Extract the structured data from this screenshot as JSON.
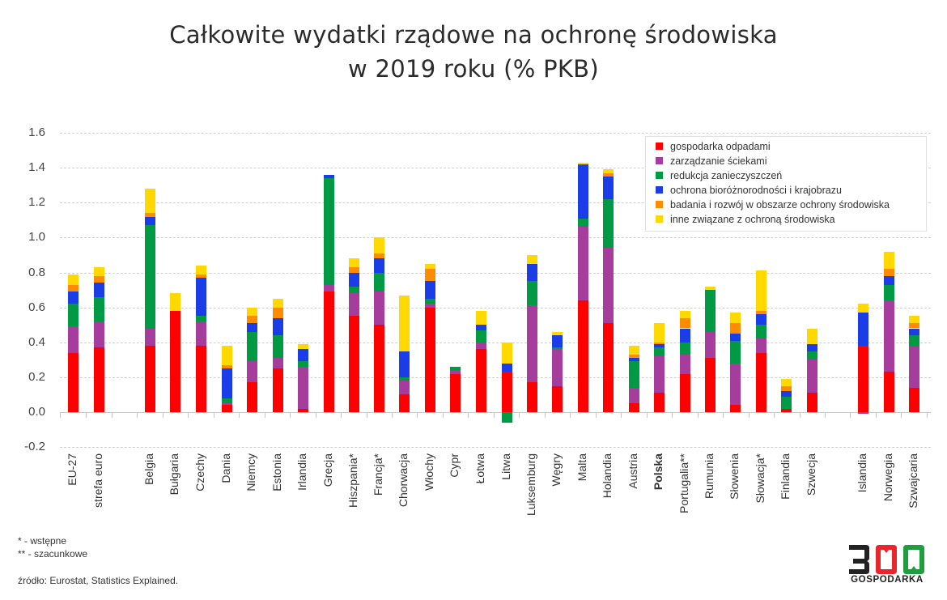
{
  "header": {
    "title_line1": "Całkowite wydatki rządowe na ochronę środowiska",
    "title_line2": "w 2019 roku (% PKB)"
  },
  "colors": {
    "gospodarka_odpadami": "#ff0000",
    "zarzadzanie_sciekami": "#a63c9b",
    "redukcja_zanieczyszczen": "#009a44",
    "ochrona_bioroznorodnosci": "#1a3de8",
    "badania_i_rozwoj": "#ff8c00",
    "inne": "#ffd800"
  },
  "legend": {
    "items": [
      {
        "label": "gospodarka odpadami",
        "color": "#ff0000"
      },
      {
        "label": "zarządzanie ściekami",
        "color": "#a63c9b"
      },
      {
        "label": "redukcja zanieczyszczeń",
        "color": "#009a44"
      },
      {
        "label": "ochrona bioróżnorodności i krajobrazu",
        "color": "#1a3de8"
      },
      {
        "label": "badania i rozwój w obszarze ochrony środowiska",
        "color": "#ff8c00"
      },
      {
        "label": "inne związane z ochroną środowiska",
        "color": "#ffd800"
      }
    ]
  },
  "y_axis": {
    "ticks": [
      "1.6",
      "1.4",
      "1.2",
      "1.0",
      "0.8",
      "0.6",
      "0.4",
      "0.2",
      "0.0",
      "-0.2"
    ]
  },
  "footer": {
    "note1": "* - wstępne",
    "note2": "** - szacunkowe",
    "source": "źródło: Eurostat, Statistics Explained.",
    "logo_number": "300",
    "logo_text": "GOSPODARKA"
  },
  "chart_data": {
    "type": "bar",
    "stacked": true,
    "title": "Całkowite wydatki rządowe na ochronę środowiska w 2019 roku (% PKB)",
    "xlabel": "",
    "ylabel": "% PKB",
    "ylim": [
      -0.2,
      1.6
    ],
    "grid": true,
    "legend_position": "top-right",
    "categories": [
      "EU-27",
      "strefa euro",
      "Belgia",
      "Bułgaria",
      "Czechy",
      "Dania",
      "Niemcy",
      "Estonia",
      "Irlandia",
      "Grecja",
      "Hiszpania*",
      "Francja*",
      "Chorwacja",
      "Włochy",
      "Cypr",
      "Łotwa",
      "Litwa",
      "Luksemburg",
      "Węgry",
      "Malta",
      "Holandia",
      "Austria",
      "Polska",
      "Portugalia**",
      "Rumunia",
      "Słowenia",
      "Słowacja*",
      "Finlandia",
      "Szwecja",
      "Islandia",
      "Norwegia",
      "Szwajcaria"
    ],
    "series": [
      {
        "name": "gospodarka odpadami",
        "values": [
          0.34,
          0.37,
          0.38,
          0.58,
          0.38,
          0.04,
          0.17,
          0.25,
          0.02,
          0.69,
          0.55,
          0.5,
          0.1,
          0.6,
          0.22,
          0.36,
          0.23,
          0.17,
          0.15,
          0.64,
          0.51,
          0.05,
          0.11,
          0.22,
          0.31,
          0.04,
          0.34,
          0.02,
          0.11,
          0.38,
          0.23,
          0.14
        ]
      },
      {
        "name": "zarządzanie ściekami",
        "values": [
          0.15,
          0.15,
          0.1,
          0.0,
          0.14,
          0.01,
          0.12,
          0.06,
          0.24,
          0.04,
          0.13,
          0.19,
          0.08,
          0.02,
          0.02,
          0.04,
          0.0,
          0.44,
          0.21,
          0.42,
          0.43,
          0.09,
          0.21,
          0.11,
          0.15,
          0.24,
          0.08,
          0.0,
          0.19,
          -0.01,
          0.41,
          0.24
        ]
      },
      {
        "name": "redukcja zanieczyszczeń",
        "values": [
          0.13,
          0.14,
          0.59,
          0.0,
          0.03,
          0.03,
          0.17,
          0.13,
          0.03,
          0.61,
          0.04,
          0.11,
          0.02,
          0.03,
          0.02,
          0.07,
          -0.06,
          0.14,
          0.01,
          0.05,
          0.28,
          0.15,
          0.05,
          0.07,
          0.24,
          0.13,
          0.08,
          0.07,
          0.05,
          0.0,
          0.09,
          0.06
        ]
      },
      {
        "name": "ochrona bioróżnorodności i krajobrazu",
        "values": [
          0.07,
          0.08,
          0.05,
          0.0,
          0.22,
          0.17,
          0.05,
          0.1,
          0.07,
          0.02,
          0.08,
          0.08,
          0.15,
          0.1,
          0.0,
          0.03,
          0.05,
          0.1,
          0.07,
          0.31,
          0.13,
          0.02,
          0.02,
          0.08,
          0.0,
          0.04,
          0.06,
          0.03,
          0.04,
          0.19,
          0.05,
          0.04
        ]
      },
      {
        "name": "badania i rozwój w obszarze ochrony środowiska",
        "values": [
          0.04,
          0.04,
          0.02,
          0.0,
          0.02,
          0.02,
          0.04,
          0.06,
          0.0,
          0.0,
          0.03,
          0.03,
          0.0,
          0.07,
          0.0,
          0.0,
          0.0,
          0.0,
          0.0,
          0.0,
          0.02,
          0.02,
          0.01,
          0.06,
          0.0,
          0.06,
          0.02,
          0.03,
          0.0,
          0.0,
          0.04,
          0.03
        ]
      },
      {
        "name": "inne związane z ochroną środowiska",
        "values": [
          0.06,
          0.05,
          0.14,
          0.1,
          0.05,
          0.11,
          0.05,
          0.05,
          0.03,
          0.0,
          0.05,
          0.09,
          0.32,
          0.03,
          0.0,
          0.08,
          0.12,
          0.05,
          0.02,
          0.01,
          0.02,
          0.05,
          0.11,
          0.04,
          0.02,
          0.06,
          0.23,
          0.04,
          0.09,
          0.05,
          0.1,
          0.04
        ]
      }
    ],
    "bold_categories": [
      "Polska"
    ]
  }
}
